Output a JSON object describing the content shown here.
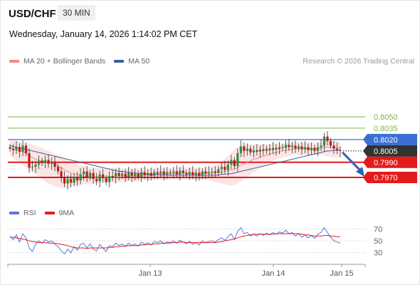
{
  "header": {
    "symbol": "USD/CHF",
    "timeframe": "30 MIN",
    "datetime": "Wednesday, January 14, 2026 1:14:02 PM CET"
  },
  "main_legend": [
    {
      "label": "MA 20 + Bollinger Bands",
      "color": "#f08a8a"
    },
    {
      "label": "MA 50",
      "color": "#3d5f9e"
    }
  ],
  "credit": "Research © 2026 Trading Central",
  "rsi_legend": [
    {
      "label": "RSI",
      "color": "#5a78d6"
    },
    {
      "label": "9MA",
      "color": "#e01e1e"
    }
  ],
  "chart_data": [
    {
      "type": "candlestick",
      "price_range": [
        0.7955,
        0.8113
      ],
      "x_tick_labels": [
        "Jan 13",
        "Jan 14",
        "Jan 15"
      ],
      "levels": [
        {
          "value": 0.805,
          "label": "0.8050",
          "style": "target",
          "color": "#7ab648"
        },
        {
          "value": 0.8035,
          "label": "0.8035",
          "style": "target",
          "color": "#7ab648"
        },
        {
          "value": 0.802,
          "label": "0.8020",
          "style": "pivot",
          "color": "#3b6fd6"
        },
        {
          "value": 0.8005,
          "label": "0.8005",
          "style": "last",
          "color": "#333333"
        },
        {
          "value": 0.799,
          "label": "0.7990",
          "style": "support",
          "color": "#e21b1b"
        },
        {
          "value": 0.797,
          "label": "0.7970",
          "style": "support",
          "color": "#e21b1b"
        }
      ],
      "closes": [
        0.8008,
        0.8006,
        0.801,
        0.8004,
        0.8012,
        0.8002,
        0.7983,
        0.7984,
        0.7987,
        0.7992,
        0.7989,
        0.7993,
        0.7988,
        0.7991,
        0.7984,
        0.7978,
        0.797,
        0.7962,
        0.7968,
        0.7963,
        0.7971,
        0.7966,
        0.7974,
        0.7978,
        0.797,
        0.7976,
        0.7968,
        0.7965,
        0.7974,
        0.7969,
        0.7964,
        0.7972,
        0.797,
        0.7976,
        0.7972,
        0.7975,
        0.7971,
        0.7976,
        0.7972,
        0.7975,
        0.7971,
        0.7977,
        0.7973,
        0.7976,
        0.7972,
        0.7977,
        0.7975,
        0.7978,
        0.7974,
        0.7977,
        0.7976,
        0.7978,
        0.7974,
        0.7979,
        0.7976,
        0.7974,
        0.7977,
        0.7973,
        0.7976,
        0.7972,
        0.7978,
        0.7975,
        0.7977,
        0.7978,
        0.7976,
        0.7981,
        0.7984,
        0.798,
        0.7987,
        0.7993,
        0.7985,
        0.8002,
        0.8011,
        0.8005,
        0.8008,
        0.8003,
        0.8006,
        0.8004,
        0.8007,
        0.8005,
        0.8008,
        0.8006,
        0.8009,
        0.8007,
        0.801,
        0.8009,
        0.8013,
        0.801,
        0.8012,
        0.8008,
        0.8011,
        0.8007,
        0.801,
        0.8006,
        0.8009,
        0.8005,
        0.801,
        0.8012,
        0.8024,
        0.8018,
        0.8012,
        0.8008,
        0.8006,
        0.8005
      ],
      "ma20": [
        0.8009,
        0.8007,
        0.8006,
        0.8005,
        0.8004,
        0.8002,
        0.7999,
        0.7996,
        0.7994,
        0.7993,
        0.7992,
        0.7991,
        0.799,
        0.7989,
        0.7987,
        0.7985,
        0.7983,
        0.798,
        0.7978,
        0.7976,
        0.7975,
        0.7974,
        0.7973,
        0.7972,
        0.7971,
        0.7971,
        0.797,
        0.797,
        0.797,
        0.797,
        0.797,
        0.797,
        0.797,
        0.797,
        0.7971,
        0.7971,
        0.7971,
        0.7972,
        0.7972,
        0.7972,
        0.7972,
        0.7973,
        0.7973,
        0.7973,
        0.7973,
        0.7974,
        0.7974,
        0.7974,
        0.7974,
        0.7975,
        0.7975,
        0.7975,
        0.7975,
        0.7976,
        0.7976,
        0.7976,
        0.7976,
        0.7976,
        0.7976,
        0.7976,
        0.7976,
        0.7976,
        0.7976,
        0.7976,
        0.7976,
        0.7977,
        0.7977,
        0.7978,
        0.7979,
        0.798,
        0.7981,
        0.7983,
        0.7986,
        0.7988,
        0.799,
        0.7992,
        0.7994,
        0.7995,
        0.7997,
        0.7998,
        0.7999,
        0.8001,
        0.8002,
        0.8003,
        0.8004,
        0.8005,
        0.8006,
        0.8007,
        0.8007,
        0.8008,
        0.8008,
        0.8008,
        0.8008,
        0.8008,
        0.8008,
        0.8008,
        0.8008,
        0.8009,
        0.801,
        0.801,
        0.801,
        0.801,
        0.8009,
        0.8009
      ],
      "ma50": [
        0.8012,
        0.8011,
        0.801,
        0.8009,
        0.8008,
        0.8007,
        0.8006,
        0.8005,
        0.8004,
        0.8003,
        0.8002,
        0.8001,
        0.8,
        0.7999,
        0.7998,
        0.7997,
        0.7996,
        0.7995,
        0.7994,
        0.7993,
        0.7992,
        0.7991,
        0.799,
        0.7989,
        0.7988,
        0.7987,
        0.7986,
        0.7985,
        0.7984,
        0.7983,
        0.7982,
        0.7981,
        0.798,
        0.7979,
        0.7978,
        0.7978,
        0.7977,
        0.7977,
        0.7976,
        0.7976,
        0.7975,
        0.7975,
        0.7975,
        0.7974,
        0.7974,
        0.7974,
        0.7974,
        0.7973,
        0.7973,
        0.7973,
        0.7973,
        0.7973,
        0.7973,
        0.7973,
        0.7973,
        0.7973,
        0.7973,
        0.7973,
        0.7973,
        0.7973,
        0.7973,
        0.7973,
        0.7973,
        0.7973,
        0.7973,
        0.7973,
        0.7974,
        0.7974,
        0.7975,
        0.7975,
        0.7976,
        0.7977,
        0.7978,
        0.7979,
        0.798,
        0.7981,
        0.7982,
        0.7983,
        0.7984,
        0.7985,
        0.7986,
        0.7987,
        0.7988,
        0.7989,
        0.799,
        0.7991,
        0.7992,
        0.7993,
        0.7994,
        0.7995,
        0.7996,
        0.7997,
        0.7998,
        0.7999,
        0.8,
        0.8001,
        0.8002,
        0.8003,
        0.8004,
        0.8005,
        0.8005,
        0.8006,
        0.8006,
        0.8006
      ],
      "band_upper": [
        0.802,
        0.8019,
        0.8018,
        0.8017,
        0.8016,
        0.8015,
        0.8014,
        0.8013,
        0.8012,
        0.8011,
        0.8009,
        0.8007,
        0.8005,
        0.8003,
        0.8001,
        0.7999,
        0.7997,
        0.7995,
        0.7993,
        0.7991,
        0.7989,
        0.7987,
        0.7986,
        0.7985,
        0.7984,
        0.7984,
        0.7983,
        0.7983,
        0.7983,
        0.7983,
        0.7983,
        0.7983,
        0.7983,
        0.7983,
        0.7982,
        0.7982,
        0.7982,
        0.7982,
        0.7982,
        0.7982,
        0.7982,
        0.7982,
        0.7982,
        0.7982,
        0.7982,
        0.7982,
        0.7982,
        0.7982,
        0.7982,
        0.7982,
        0.7982,
        0.7982,
        0.7982,
        0.7983,
        0.7983,
        0.7983,
        0.7983,
        0.7983,
        0.7983,
        0.7983,
        0.7983,
        0.7984,
        0.7984,
        0.7985,
        0.7986,
        0.7988,
        0.7991,
        0.7995,
        0.7999,
        0.8003,
        0.8007,
        0.801,
        0.8012,
        0.8013,
        0.8014,
        0.8014,
        0.8014,
        0.8014,
        0.8014,
        0.8014,
        0.8014,
        0.8014,
        0.8015,
        0.8015,
        0.8015,
        0.8015,
        0.8016,
        0.8016,
        0.8016,
        0.8016,
        0.8016,
        0.8016,
        0.8016,
        0.8016,
        0.8016,
        0.8016,
        0.8016,
        0.8017,
        0.8018,
        0.8019,
        0.8019,
        0.8019,
        0.8018,
        0.8017
      ],
      "band_lower": [
        0.7998,
        0.7995,
        0.7992,
        0.7989,
        0.7986,
        0.7983,
        0.798,
        0.7977,
        0.7974,
        0.7971,
        0.7968,
        0.7965,
        0.7962,
        0.796,
        0.7958,
        0.7957,
        0.7956,
        0.7956,
        0.7956,
        0.7957,
        0.7958,
        0.7959,
        0.796,
        0.7961,
        0.7961,
        0.7962,
        0.7962,
        0.7962,
        0.7963,
        0.7963,
        0.7963,
        0.7963,
        0.7963,
        0.7963,
        0.7964,
        0.7964,
        0.7964,
        0.7965,
        0.7965,
        0.7965,
        0.7965,
        0.7966,
        0.7966,
        0.7966,
        0.7966,
        0.7966,
        0.7967,
        0.7967,
        0.7967,
        0.7967,
        0.7967,
        0.7967,
        0.7967,
        0.7967,
        0.7967,
        0.7967,
        0.7967,
        0.7967,
        0.7967,
        0.7967,
        0.7967,
        0.7967,
        0.7966,
        0.7965,
        0.7964,
        0.7963,
        0.7962,
        0.7961,
        0.796,
        0.7959,
        0.796,
        0.7962,
        0.7965,
        0.7968,
        0.7971,
        0.7974,
        0.7977,
        0.798,
        0.7983,
        0.7986,
        0.7988,
        0.799,
        0.7992,
        0.7994,
        0.7995,
        0.7996,
        0.7997,
        0.7998,
        0.7999,
        0.8,
        0.8,
        0.8,
        0.8,
        0.8,
        0.8,
        0.8,
        0.8,
        0.8,
        0.7999,
        0.7998,
        0.7997,
        0.7996,
        0.7996,
        0.7996
      ],
      "forecast_arrow": {
        "from": 0.8005,
        "to": 0.797
      }
    },
    {
      "type": "line",
      "name": "RSI",
      "y_tick_labels": [
        "70",
        "50",
        "30"
      ],
      "ylim": [
        20,
        80
      ],
      "rsi": [
        58,
        52,
        60,
        48,
        62,
        55,
        38,
        32,
        44,
        50,
        46,
        52,
        48,
        50,
        44,
        40,
        33,
        28,
        36,
        30,
        40,
        34,
        44,
        46,
        38,
        45,
        36,
        33,
        44,
        38,
        32,
        42,
        40,
        46,
        42,
        45,
        41,
        46,
        42,
        45,
        41,
        48,
        44,
        47,
        43,
        49,
        47,
        50,
        45,
        48,
        47,
        50,
        46,
        51,
        48,
        45,
        49,
        44,
        47,
        43,
        50,
        47,
        49,
        50,
        48,
        52,
        55,
        51,
        57,
        62,
        52,
        66,
        72,
        62,
        64,
        58,
        61,
        58,
        62,
        59,
        63,
        60,
        64,
        61,
        65,
        63,
        68,
        62,
        64,
        58,
        62,
        56,
        60,
        55,
        59,
        54,
        61,
        64,
        72,
        64,
        56,
        50,
        48,
        46
      ],
      "ma9": [
        56,
        56,
        55,
        54,
        53,
        52,
        50,
        49,
        48,
        47,
        47,
        47,
        46,
        46,
        46,
        45,
        44,
        43,
        42,
        40,
        39,
        38,
        38,
        38,
        37,
        38,
        38,
        38,
        38,
        38,
        38,
        39,
        39,
        40,
        40,
        41,
        41,
        42,
        42,
        42,
        42,
        43,
        43,
        44,
        44,
        45,
        45,
        46,
        46,
        46,
        46,
        47,
        47,
        48,
        48,
        47,
        47,
        47,
        47,
        47,
        47,
        47,
        47,
        47,
        47,
        48,
        49,
        50,
        51,
        52,
        53,
        55,
        57,
        58,
        59,
        60,
        61,
        61,
        61,
        61,
        61,
        61,
        61,
        62,
        62,
        62,
        62,
        62,
        62,
        62,
        62,
        61,
        60,
        60,
        59,
        58,
        58,
        58,
        59,
        59,
        58,
        58,
        57,
        57
      ]
    }
  ]
}
